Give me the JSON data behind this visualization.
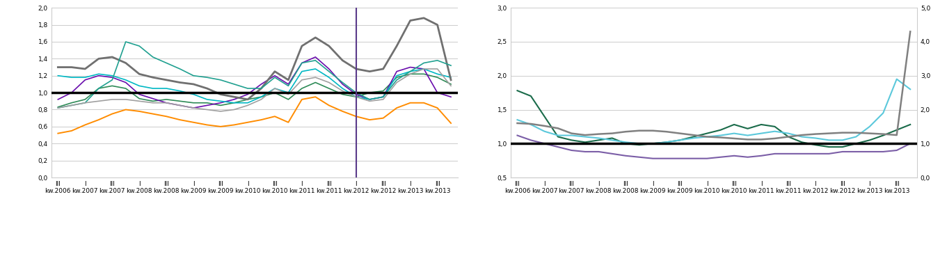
{
  "left_chart": {
    "ylim": [
      0.0,
      2.0
    ],
    "yticks": [
      0.0,
      0.2,
      0.4,
      0.6,
      0.8,
      1.0,
      1.2,
      1.4,
      1.6,
      1.8,
      2.0
    ],
    "vline_x": 22,
    "x_tick_pos": [
      0,
      2,
      4,
      6,
      8,
      10,
      12,
      14,
      16,
      18,
      20,
      22,
      24,
      26,
      28
    ],
    "x_labels_top": [
      "III",
      "I",
      "III",
      "I",
      "III",
      "I",
      "III",
      "I",
      "III",
      "I",
      "III",
      "I",
      "III",
      "I",
      "III"
    ],
    "x_labels_bot": [
      "kw.2006",
      "kw.2007",
      "kw.2007",
      "kw.2008",
      "kw.2008",
      "kw.2009",
      "kw.2009",
      "kw.2010",
      "kw.2010",
      "kw.2011",
      "kw.2011",
      "kw.2012",
      "kw.2012",
      "kw.2013",
      "kw.2013"
    ],
    "gdansk": [
      0.83,
      0.88,
      0.92,
      1.05,
      1.08,
      1.05,
      0.93,
      0.9,
      0.92,
      0.9,
      0.88,
      0.88,
      0.85,
      0.88,
      0.92,
      0.95,
      1.0,
      0.92,
      1.05,
      1.12,
      1.05,
      0.98,
      0.95,
      1.0,
      1.02,
      1.18,
      1.22,
      1.22,
      1.18,
      1.1
    ],
    "gdynia": [
      0.92,
      1.0,
      1.15,
      1.2,
      1.18,
      1.12,
      0.98,
      0.93,
      0.88,
      0.85,
      0.82,
      0.85,
      0.88,
      0.92,
      0.98,
      1.1,
      1.2,
      1.1,
      1.35,
      1.42,
      1.28,
      1.1,
      0.98,
      0.92,
      0.95,
      1.25,
      1.3,
      1.28,
      1.0,
      0.95
    ],
    "krakow": [
      1.2,
      1.18,
      1.18,
      1.22,
      1.2,
      1.15,
      1.08,
      1.05,
      1.05,
      1.02,
      0.98,
      0.92,
      0.9,
      0.88,
      0.88,
      0.95,
      1.05,
      1.0,
      1.25,
      1.28,
      1.18,
      1.05,
      0.95,
      0.92,
      0.95,
      1.2,
      1.25,
      1.28,
      1.22,
      1.18
    ],
    "lodz": [
      1.3,
      1.3,
      1.28,
      1.4,
      1.42,
      1.35,
      1.22,
      1.18,
      1.15,
      1.12,
      1.1,
      1.05,
      0.98,
      0.95,
      0.92,
      1.05,
      1.25,
      1.15,
      1.55,
      1.65,
      1.55,
      1.38,
      1.28,
      1.25,
      1.28,
      1.55,
      1.85,
      1.88,
      1.8,
      1.15
    ],
    "poznan": [
      0.82,
      0.85,
      0.88,
      1.05,
      1.15,
      1.6,
      1.55,
      1.42,
      1.35,
      1.28,
      1.2,
      1.18,
      1.15,
      1.1,
      1.05,
      1.05,
      1.18,
      1.08,
      1.35,
      1.38,
      1.25,
      1.12,
      1.0,
      0.92,
      0.95,
      1.15,
      1.25,
      1.35,
      1.38,
      1.32
    ],
    "warszawa": [
      0.52,
      0.55,
      0.62,
      0.68,
      0.75,
      0.8,
      0.78,
      0.75,
      0.72,
      0.68,
      0.65,
      0.62,
      0.6,
      0.62,
      0.65,
      0.68,
      0.72,
      0.65,
      0.92,
      0.95,
      0.85,
      0.78,
      0.72,
      0.68,
      0.7,
      0.82,
      0.88,
      0.88,
      0.82,
      0.64
    ],
    "wroclaw": [
      0.82,
      0.85,
      0.88,
      0.9,
      0.92,
      0.92,
      0.9,
      0.88,
      0.88,
      0.85,
      0.82,
      0.8,
      0.78,
      0.8,
      0.85,
      0.92,
      1.05,
      0.98,
      1.15,
      1.18,
      1.12,
      1.02,
      0.95,
      0.9,
      0.92,
      1.12,
      1.22,
      1.28,
      1.28,
      1.08
    ],
    "gdansk_color": "#2E8B57",
    "gdynia_color": "#6A0DAD",
    "krakow_color": "#00B8C4",
    "lodz_color": "#707070",
    "poznan_color": "#20A090",
    "warszawa_color": "#FF8C00",
    "wroclaw_color": "#A0A0A0",
    "vline_color": "#5A3A8A"
  },
  "right_chart": {
    "ylim_left": [
      0.5,
      3.0
    ],
    "ylim_right": [
      0.0,
      5.0
    ],
    "yticks_left": [
      0.5,
      1.0,
      1.5,
      2.0,
      2.5,
      3.0
    ],
    "yticks_right": [
      0.0,
      1.0,
      2.0,
      3.0,
      4.0,
      5.0
    ],
    "x_tick_pos": [
      0,
      2,
      4,
      6,
      8,
      10,
      12,
      14,
      16,
      18,
      20,
      22,
      24,
      26,
      28
    ],
    "x_labels_top": [
      "III",
      "I",
      "III",
      "I",
      "III",
      "I",
      "III",
      "I",
      "III",
      "I",
      "III",
      "I",
      "III",
      "I",
      "III"
    ],
    "x_labels_bot": [
      "kw.2006",
      "kw.2007",
      "kw.2007",
      "kw.2008",
      "kw.2008",
      "kw.2009",
      "kw.2009",
      "kw.2010",
      "kw.2010",
      "kw.2011",
      "kw.2011",
      "kw.2012",
      "kw.2012",
      "kw.2013",
      "kw.2013"
    ],
    "kred_gd": [
      1.78,
      1.7,
      1.4,
      1.1,
      1.05,
      1.02,
      1.05,
      1.08,
      1.0,
      0.98,
      1.0,
      1.02,
      1.05,
      1.1,
      1.15,
      1.2,
      1.28,
      1.22,
      1.28,
      1.25,
      1.1,
      1.02,
      0.98,
      0.95,
      0.95,
      1.0,
      1.05,
      1.12,
      1.2,
      1.28
    ],
    "obl5l": [
      1.35,
      1.28,
      1.18,
      1.12,
      1.12,
      1.1,
      1.08,
      1.05,
      1.02,
      1.0,
      1.0,
      1.02,
      1.05,
      1.08,
      1.1,
      1.12,
      1.15,
      1.12,
      1.15,
      1.18,
      1.15,
      1.1,
      1.08,
      1.05,
      1.05,
      1.1,
      1.25,
      1.45,
      1.95,
      1.8
    ],
    "stop_kom": [
      1.12,
      1.05,
      1.0,
      0.95,
      0.9,
      0.88,
      0.88,
      0.85,
      0.82,
      0.8,
      0.78,
      0.78,
      0.78,
      0.78,
      0.78,
      0.8,
      0.82,
      0.8,
      0.82,
      0.85,
      0.85,
      0.85,
      0.85,
      0.85,
      0.88,
      0.88,
      0.88,
      0.88,
      0.9,
      1.0
    ],
    "dep_gd": [
      1.6,
      1.58,
      1.52,
      1.45,
      1.3,
      1.25,
      1.28,
      1.3,
      1.35,
      1.38,
      1.38,
      1.35,
      1.3,
      1.25,
      1.2,
      1.18,
      1.15,
      1.12,
      1.12,
      1.15,
      1.2,
      1.25,
      1.28,
      1.3,
      1.32,
      1.32,
      1.3,
      1.28,
      1.25,
      4.3
    ],
    "kred_gd_color": "#1A6B4A",
    "obl5l_color": "#5BC8DB",
    "stop_kom_color": "#7B5EA7",
    "dep_gd_color": "#808080"
  }
}
